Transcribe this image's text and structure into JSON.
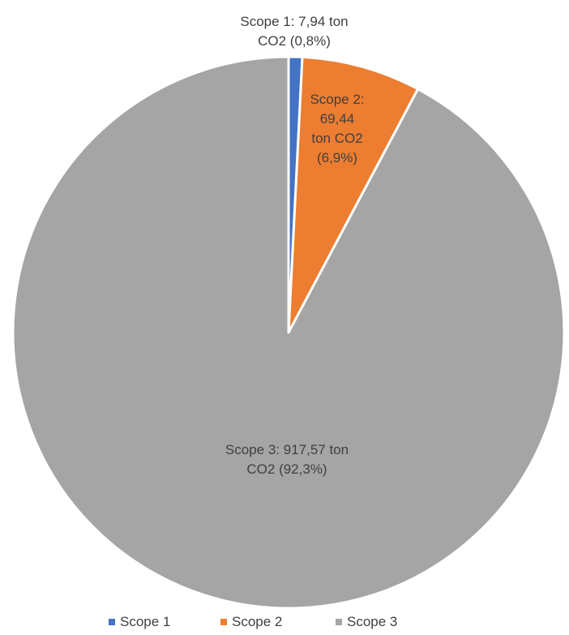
{
  "chart_data": {
    "type": "pie",
    "title": "",
    "categories": [
      "Scope 1",
      "Scope 2",
      "Scope 3"
    ],
    "values": [
      7.94,
      69.44,
      917.57
    ],
    "percentages": [
      0.8,
      6.9,
      92.3
    ],
    "colors": [
      "#4472C4",
      "#ED7D31",
      "#A5A5A5"
    ],
    "data_labels": [
      [
        "Scope 1: 7,94 ton",
        "CO2 (0,8%)"
      ],
      [
        "Scope 2:",
        "69,44",
        "ton CO2",
        "(6,9%)"
      ],
      [
        "Scope 3: 917,57 ton",
        "CO2 (92,3%)"
      ]
    ],
    "legend": {
      "position": "bottom",
      "entries": [
        "Scope 1",
        "Scope 2",
        "Scope 3"
      ]
    }
  }
}
